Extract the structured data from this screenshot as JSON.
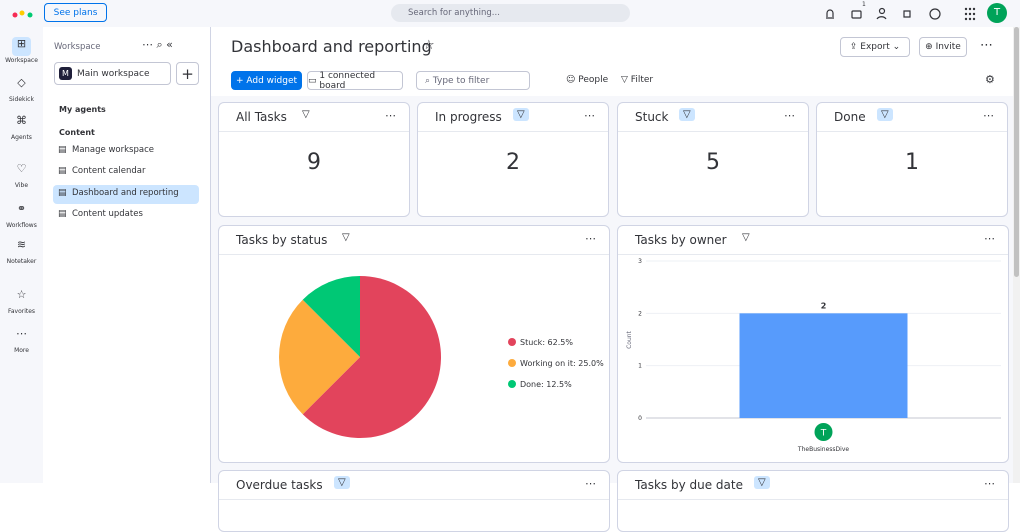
{
  "topbar": {
    "see_plans": "See plans",
    "search_placeholder": "Search for anything...",
    "notification_count": "1",
    "avatar": "T"
  },
  "left_rail": [
    "Workspace",
    "Sidekick",
    "Agents",
    "Vibe",
    "Workflows",
    "Notetaker",
    "Favorites",
    "More"
  ],
  "sidebar": {
    "title": "Workspace",
    "workspace": "Main workspace",
    "workspace_initial": "M",
    "my_agents": "My agents",
    "content": "Content",
    "items": [
      "Manage workspace",
      "Content calendar",
      "Dashboard and reporting",
      "Content updates"
    ]
  },
  "header": {
    "title": "Dashboard and reporting",
    "export": "Export",
    "invite": "Invite"
  },
  "toolbar": {
    "add_widget": "Add widget",
    "connected_board": "1 connected board",
    "filter_placeholder": "Type to filter",
    "people": "People",
    "filter": "Filter"
  },
  "number_widgets": [
    {
      "title": "All Tasks",
      "value": 9
    },
    {
      "title": "In progress",
      "value": 2
    },
    {
      "title": "Stuck",
      "value": 5
    },
    {
      "title": "Done",
      "value": 1
    }
  ],
  "status_chart": {
    "type": "pie",
    "title": "Tasks by status",
    "values": [
      62.5,
      25.0,
      12.5
    ],
    "value_labels": [
      "Stuck: 62.5%",
      "Working on it: 25.0%",
      "Done: 12.5%"
    ],
    "colors": [
      "#e2445c",
      "#fdab3d",
      "#00c875"
    ]
  },
  "owner_chart": {
    "type": "bar",
    "title": "Tasks by owner",
    "y_label": "Count",
    "categories": [
      "TheBusinessDive"
    ],
    "values": [
      2
    ],
    "owner_initial": "T",
    "color": "#579bfc",
    "ylim": [
      0,
      3
    ],
    "yticks": [
      0,
      1,
      2,
      3
    ]
  },
  "bottom_widgets": [
    "Overdue tasks",
    "Tasks by due date"
  ]
}
